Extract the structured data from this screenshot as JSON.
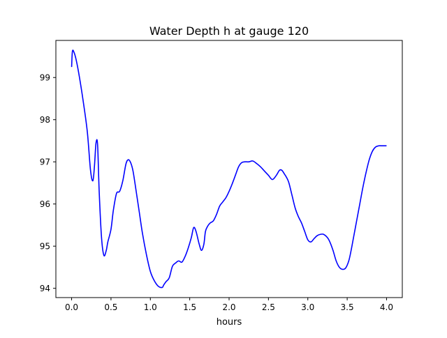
{
  "chart_data": {
    "type": "line",
    "title": "Water Depth h at gauge 120",
    "xlabel": "hours",
    "ylabel": "",
    "xlim": [
      -0.2,
      4.2
    ],
    "ylim": [
      93.78,
      99.88
    ],
    "xticks": [
      0.0,
      0.5,
      1.0,
      1.5,
      2.0,
      2.5,
      3.0,
      3.5,
      4.0
    ],
    "xtick_labels": [
      "0.0",
      "0.5",
      "1.0",
      "1.5",
      "2.0",
      "2.5",
      "3.0",
      "3.5",
      "4.0"
    ],
    "yticks": [
      94,
      95,
      96,
      97,
      98,
      99
    ],
    "ytick_labels": [
      "94",
      "95",
      "96",
      "97",
      "98",
      "99"
    ],
    "grid": false,
    "legend": "none",
    "series": [
      {
        "color": "#0000ff",
        "x": [
          0.0,
          0.01,
          0.03,
          0.06,
          0.1,
          0.15,
          0.2,
          0.24,
          0.27,
          0.29,
          0.31,
          0.33,
          0.35,
          0.38,
          0.41,
          0.44,
          0.46,
          0.5,
          0.53,
          0.57,
          0.61,
          0.65,
          0.69,
          0.72,
          0.75,
          0.78,
          0.82,
          0.86,
          0.9,
          0.95,
          1.0,
          1.05,
          1.1,
          1.15,
          1.17,
          1.2,
          1.24,
          1.28,
          1.32,
          1.36,
          1.4,
          1.44,
          1.48,
          1.52,
          1.55,
          1.58,
          1.62,
          1.65,
          1.68,
          1.7,
          1.73,
          1.76,
          1.8,
          1.84,
          1.88,
          1.92,
          1.96,
          2.0,
          2.04,
          2.08,
          2.12,
          2.16,
          2.2,
          2.25,
          2.3,
          2.35,
          2.4,
          2.45,
          2.5,
          2.55,
          2.6,
          2.64,
          2.67,
          2.7,
          2.73,
          2.76,
          2.8,
          2.84,
          2.88,
          2.92,
          2.96,
          3.0,
          3.04,
          3.08,
          3.12,
          3.16,
          3.2,
          3.25,
          3.28,
          3.32,
          3.36,
          3.4,
          3.44,
          3.48,
          3.52,
          3.55,
          3.58,
          3.62,
          3.66,
          3.7,
          3.74,
          3.78,
          3.82,
          3.86,
          3.9,
          3.94,
          3.97,
          4.0
        ],
        "y": [
          99.25,
          99.62,
          99.6,
          99.4,
          99.0,
          98.4,
          97.7,
          96.8,
          96.55,
          96.9,
          97.45,
          97.4,
          96.3,
          95.2,
          94.78,
          94.9,
          95.1,
          95.4,
          95.85,
          96.25,
          96.3,
          96.55,
          96.95,
          97.05,
          96.98,
          96.78,
          96.3,
          95.8,
          95.3,
          94.8,
          94.4,
          94.18,
          94.05,
          94.02,
          94.08,
          94.16,
          94.25,
          94.52,
          94.6,
          94.65,
          94.62,
          94.75,
          94.95,
          95.2,
          95.44,
          95.35,
          95.05,
          94.9,
          95.05,
          95.35,
          95.48,
          95.55,
          95.6,
          95.75,
          95.95,
          96.05,
          96.15,
          96.3,
          96.48,
          96.68,
          96.88,
          96.98,
          97.0,
          97.0,
          97.02,
          96.96,
          96.88,
          96.78,
          96.68,
          96.58,
          96.68,
          96.8,
          96.8,
          96.72,
          96.63,
          96.5,
          96.2,
          95.9,
          95.7,
          95.55,
          95.35,
          95.15,
          95.1,
          95.18,
          95.25,
          95.28,
          95.28,
          95.2,
          95.1,
          94.9,
          94.65,
          94.5,
          94.45,
          94.48,
          94.65,
          94.9,
          95.2,
          95.6,
          96.0,
          96.4,
          96.75,
          97.05,
          97.25,
          97.35,
          97.38,
          97.38,
          97.38,
          97.38
        ]
      }
    ]
  }
}
